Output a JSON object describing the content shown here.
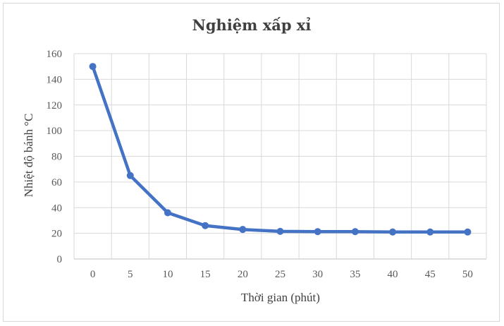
{
  "chart_data": {
    "type": "line",
    "title": "Nghiệm xấp xỉ",
    "xlabel": "Thời gian (phút)",
    "ylabel": "Nhiệt độ bánh °C",
    "x": [
      0,
      5,
      10,
      15,
      20,
      25,
      30,
      35,
      40,
      45,
      50
    ],
    "x_tick_labels": [
      "0",
      "5",
      "10",
      "15",
      "20",
      "25",
      "30",
      "35",
      "40",
      "45",
      "50"
    ],
    "y_tick_labels": [
      "0",
      "20",
      "40",
      "60",
      "80",
      "100",
      "120",
      "140",
      "160"
    ],
    "ylim": [
      0,
      160
    ],
    "grid": true,
    "legend": "none",
    "series": [
      {
        "values": [
          150,
          65,
          36,
          26,
          23,
          21.5,
          21.3,
          21.3,
          21,
          21,
          21
        ],
        "color": "#4472c4"
      }
    ]
  }
}
